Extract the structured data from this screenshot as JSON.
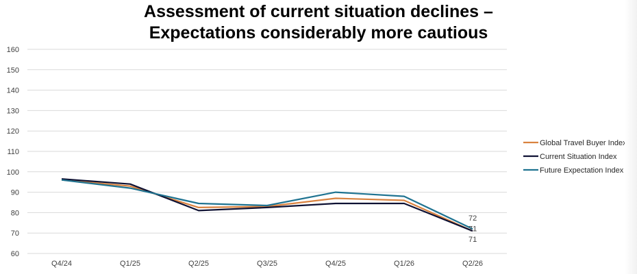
{
  "title": {
    "line1": "Assessment of current situation declines –",
    "line2": "Expectations considerably more cautious"
  },
  "chart_data": {
    "type": "line",
    "categories": [
      "Q4/24",
      "Q1/25",
      "Q2/25",
      "Q3/25",
      "Q4/25",
      "Q1/26",
      "Q2/26"
    ],
    "ylim": [
      60,
      160
    ],
    "yticks": [
      60,
      70,
      80,
      90,
      100,
      110,
      120,
      130,
      140,
      150,
      160
    ],
    "grid": true,
    "legend_position": "right",
    "series": [
      {
        "name": "Global Travel Buyer Index",
        "color": "#D9823F",
        "values": [
          96,
          93,
          82.5,
          83,
          87,
          86,
          71
        ],
        "end_label": "71"
      },
      {
        "name": "Current Situation Index",
        "color": "#0E1133",
        "values": [
          96.5,
          94,
          81,
          82.5,
          84.5,
          84.5,
          71
        ],
        "end_label": "71"
      },
      {
        "name": "Future Expectation Index",
        "color": "#1F7391",
        "values": [
          96,
          92,
          84.5,
          83.5,
          90,
          88,
          72
        ],
        "end_label": "72"
      }
    ]
  }
}
